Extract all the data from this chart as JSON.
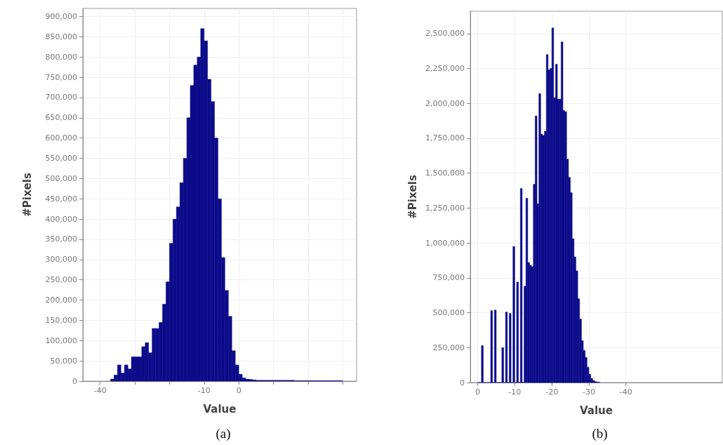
{
  "chart_data": [
    {
      "type": "histogram",
      "title": "(a)",
      "xlabel": "Value",
      "ylabel": "#Pixels",
      "color": "#0b0b8a",
      "grid": true,
      "bins": [
        -37,
        -36,
        -35,
        -34,
        -33,
        -32,
        -31,
        -30,
        -29,
        -28,
        -27,
        -26,
        -25,
        -24,
        -23,
        -22,
        -21,
        -20,
        -19,
        -18,
        -17,
        -16,
        -15,
        -14,
        -13,
        -12,
        -11,
        -10,
        -9,
        -8,
        -7,
        -6,
        -5,
        -4,
        -3,
        -2,
        -1,
        0,
        1,
        2,
        3,
        4,
        5,
        6,
        7,
        8,
        9,
        10,
        11,
        12,
        13,
        14,
        15,
        16,
        17,
        18,
        19,
        20,
        21,
        22,
        23,
        24,
        25,
        26,
        27,
        28,
        29,
        30
      ],
      "values": [
        5000,
        15000,
        40000,
        20000,
        40000,
        30000,
        60000,
        60000,
        60000,
        85000,
        95000,
        70000,
        130000,
        130000,
        145000,
        190000,
        245000,
        340000,
        400000,
        430000,
        490000,
        550000,
        650000,
        730000,
        780000,
        800000,
        870000,
        840000,
        745000,
        690000,
        600000,
        450000,
        305000,
        224000,
        160000,
        75000,
        40000,
        17000,
        8000,
        5000,
        4000,
        3000,
        2000,
        2000,
        2000,
        2000,
        2000,
        2000,
        2000,
        2000,
        2000,
        2000,
        2000,
        1000,
        1000,
        1000,
        1000,
        1000,
        1000,
        1000,
        1000,
        1000,
        1000,
        1000,
        1000,
        1000,
        1000
      ],
      "xlim": [
        -45,
        34
      ],
      "xticks": [
        -40,
        {
          "value": -30,
          "label": null
        },
        {
          "value": -20,
          "label": null
        },
        -10,
        0,
        {
          "value": 10,
          "label": null
        },
        {
          "value": 20,
          "label": null
        },
        {
          "value": 30,
          "label": null
        }
      ],
      "ylim": [
        0,
        920000
      ],
      "yticks": [
        0,
        {
          "value": 50000,
          "label": "50,000"
        },
        {
          "value": 100000,
          "label": "100,000"
        },
        {
          "value": 150000,
          "label": "150,000"
        },
        {
          "value": 200000,
          "label": "200,000"
        },
        {
          "value": 250000,
          "label": "250,000"
        },
        {
          "value": 300000,
          "label": "300,000"
        },
        {
          "value": 350000,
          "label": "350,000"
        },
        {
          "value": 400000,
          "label": "400,000"
        },
        {
          "value": 450000,
          "label": "450,000"
        },
        {
          "value": 500000,
          "label": "500,000"
        },
        {
          "value": 550000,
          "label": "550,000"
        },
        {
          "value": 600000,
          "label": "600,000"
        },
        {
          "value": 650000,
          "label": "650,000"
        },
        {
          "value": 700000,
          "label": "700,000"
        },
        {
          "value": 750000,
          "label": "750,000"
        },
        {
          "value": 800000,
          "label": "800,000"
        },
        {
          "value": 850000,
          "label": "850,000"
        },
        {
          "value": 900000,
          "label": "900,000"
        }
      ]
    },
    {
      "type": "histogram",
      "title": "(b)",
      "xlabel": "Value",
      "ylabel": "#Pixels",
      "color": "#0b0b8a",
      "grid": true,
      "bins": [
        -33,
        -32.5,
        -32,
        -31.5,
        -31,
        -30.5,
        -30,
        -29.5,
        -29,
        -28.5,
        -28,
        -27.5,
        -27,
        -26.5,
        -26,
        -25.5,
        -25,
        -24.5,
        -24,
        -23.5,
        -23,
        -22.5,
        -22,
        -21.5,
        -21,
        -20.5,
        -20,
        -19.5,
        -19,
        -18.5,
        -18,
        -17.5,
        -17,
        -16.5,
        -16,
        -15.5,
        -15,
        -14.5,
        -14,
        -13.5,
        -13,
        -12.5,
        -12,
        -11.5,
        -11,
        -10.5,
        -10,
        -9.5,
        -9,
        -8.5,
        -8,
        -7.5,
        -7,
        -6.5,
        -6,
        -5.5,
        -5,
        -4.5,
        -4,
        -3.5,
        -3,
        -2.5,
        -2,
        -1.5,
        -1,
        -0.5,
        0
      ],
      "values": [
        2000,
        4000,
        8000,
        15000,
        30000,
        60000,
        110000,
        180000,
        230000,
        300000,
        455000,
        600000,
        800000,
        900000,
        1030000,
        1360000,
        1470000,
        1600000,
        1940000,
        1950000,
        2440000,
        2030000,
        2030000,
        2280000,
        2040000,
        2540000,
        2250000,
        2240000,
        2350000,
        1800000,
        1770000,
        1780000,
        2070000,
        1280000,
        1910000,
        1420000,
        830000,
        840000,
        860000,
        1320000,
        690000,
        0,
        1390000,
        0,
        720000,
        0,
        975000,
        0,
        495000,
        0,
        505000,
        0,
        250000,
        0,
        0,
        0,
        520000,
        0,
        515000,
        0,
        0,
        0,
        0,
        265000,
        0,
        0
      ],
      "xlim": [
        2,
        -66
      ],
      "xticks": [
        0,
        -10,
        -20,
        -30,
        -40
      ],
      "ylim": [
        0,
        2660000
      ],
      "yticks": [
        0,
        {
          "value": 250000,
          "label": "250,000"
        },
        {
          "value": 500000,
          "label": "500,000"
        },
        {
          "value": 750000,
          "label": "750,000"
        },
        {
          "value": 1000000,
          "label": "1,000,000"
        },
        {
          "value": 1250000,
          "label": "1,250,000"
        },
        {
          "value": 1500000,
          "label": "1,500,000"
        },
        {
          "value": 1750000,
          "label": "1,750,000"
        },
        {
          "value": 2000000,
          "label": "2,000,000"
        },
        {
          "value": 2250000,
          "label": "2,250,000"
        },
        {
          "value": 2500000,
          "label": "2,500,000"
        }
      ]
    }
  ]
}
